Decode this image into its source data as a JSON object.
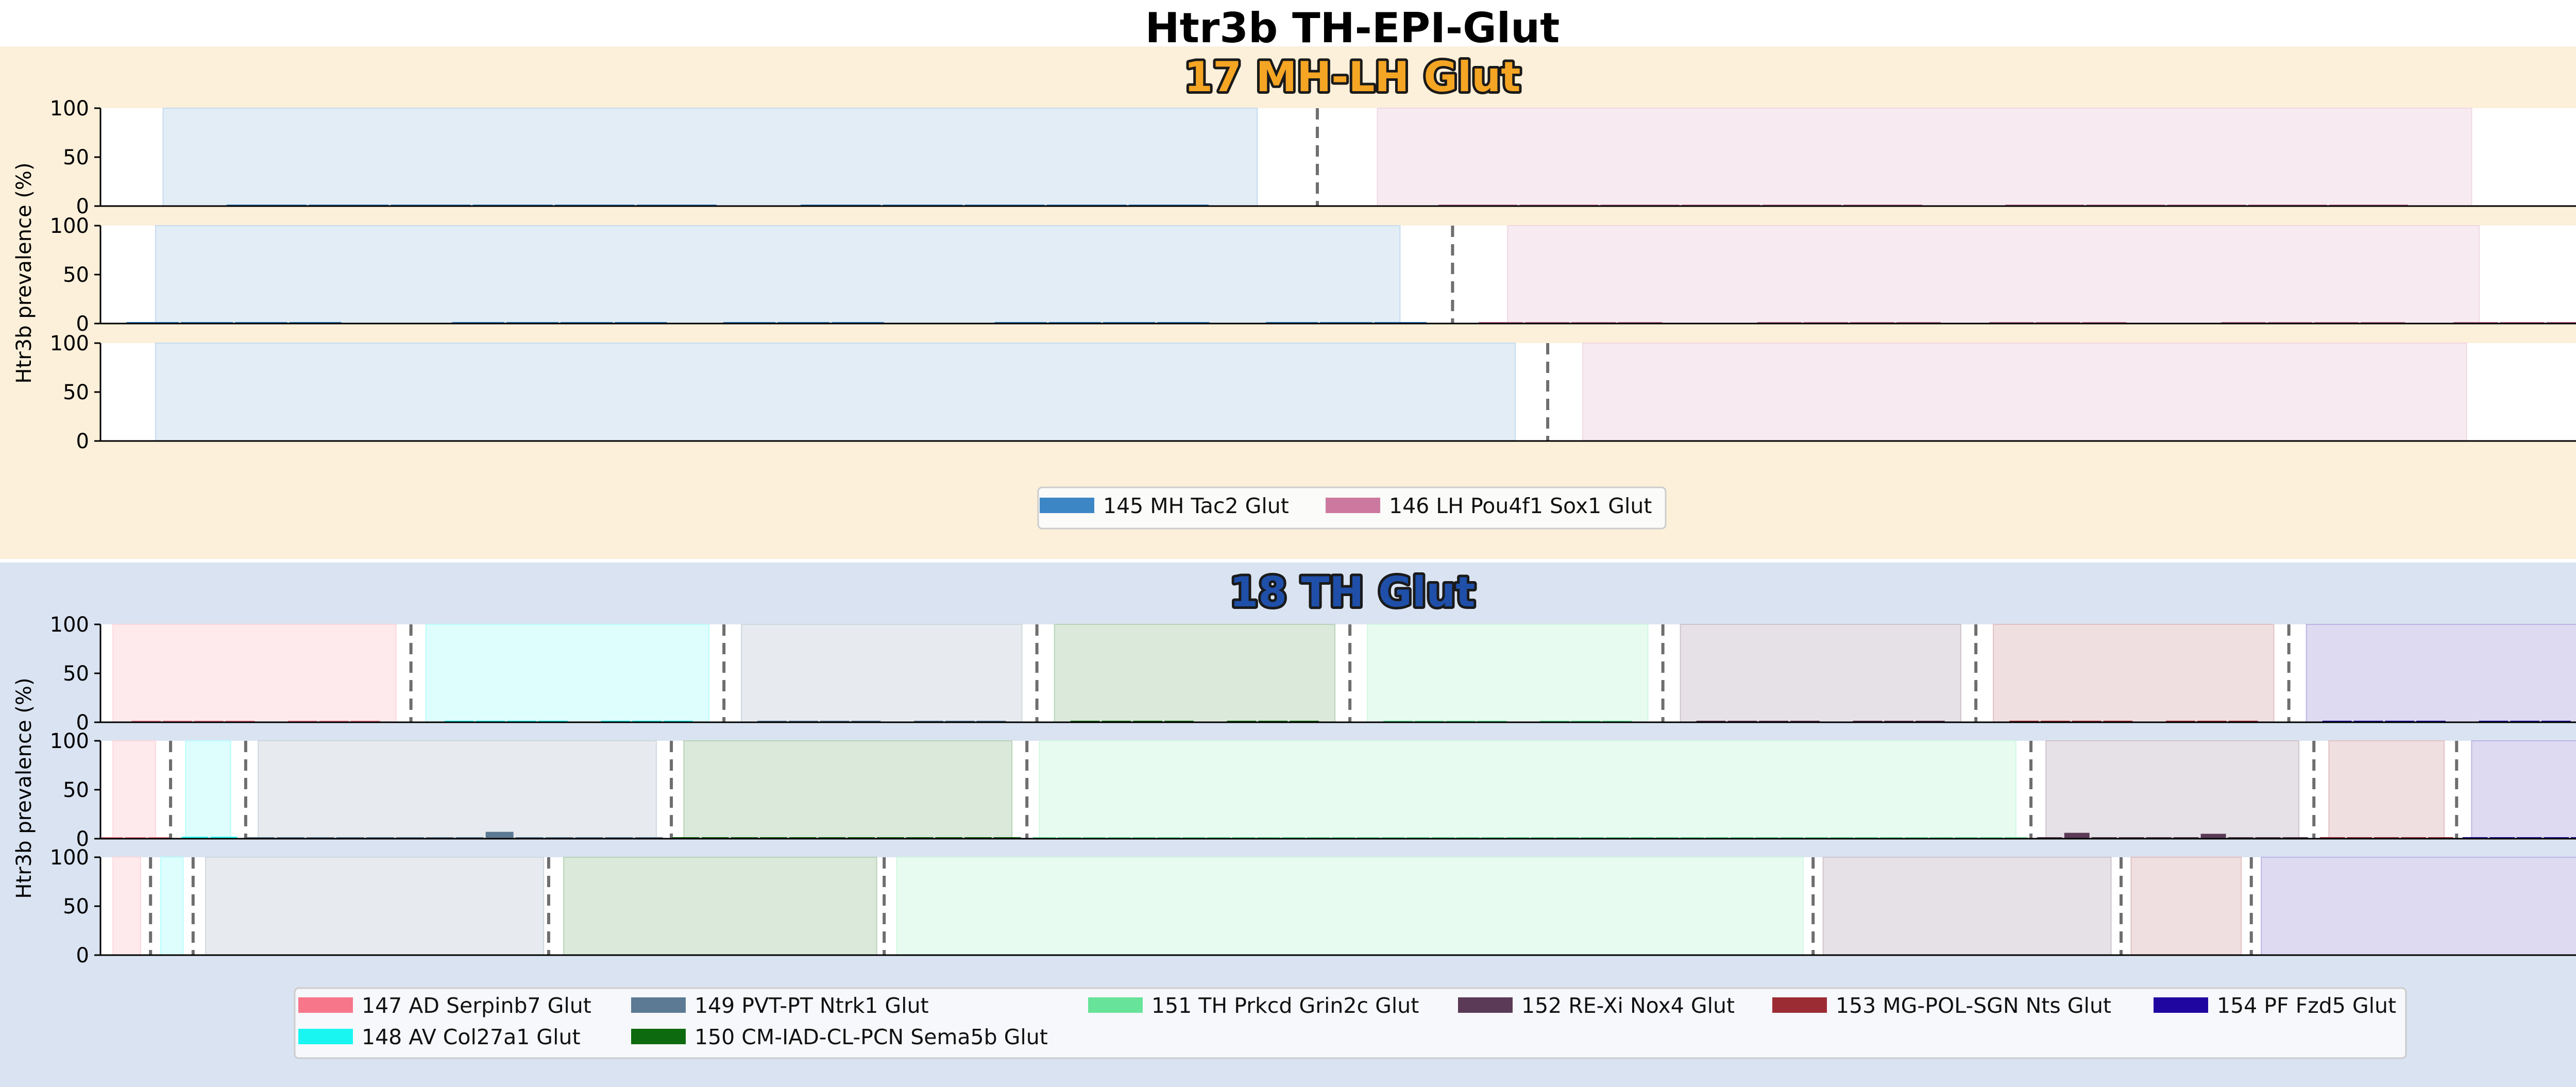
{
  "figure": {
    "title": "Htr3b TH-EPI-Glut",
    "ylabel": "Htr3b prevalence (%)",
    "yticks": [
      "0",
      "50",
      "100"
    ]
  },
  "colors": {
    "group_17_bg": "#fcf0da",
    "group_18_bg": "#dae3f1",
    "title_17_fill": "#f5a524",
    "title_18_fill": "#1f4fa8",
    "title_stroke": "#1a1a1a"
  },
  "chart_data": [
    {
      "type": "bar",
      "group_title": "17 MH-LH Glut",
      "ylim": [
        0,
        100
      ],
      "legend": [
        {
          "name": "145 MH Tac2 Glut",
          "color": "#3d86c6"
        },
        {
          "name": "146 LH Pou4f1 Sox1 Glut",
          "color": "#cc79a0"
        }
      ],
      "rows": [
        {
          "segments": [
            {
              "cluster": 0,
              "n": 12,
              "start": 0.025,
              "end": 0.462,
              "mark_start": 0.05,
              "mark_end": 0.443,
              "mark": 0.8,
              "gaps": [
                6
              ]
            },
            {
              "cluster": 1,
              "n": 12,
              "start": 0.51,
              "end": 0.947,
              "mark_start": 0.534,
              "mark_end": 0.922,
              "mark": 0.5,
              "gaps": [
                6
              ]
            }
          ],
          "dividers": [
            0.486
          ]
        },
        {
          "segments": [
            {
              "cluster": 0,
              "n": 24,
              "start": 0.022,
              "end": 0.519,
              "mark_start": 0.01,
              "mark_end": 0.53,
              "mark": 0.8,
              "gaps": [
                4,
                5,
                10,
                14,
                15,
                20
              ]
            },
            {
              "cluster": 1,
              "n": 24,
              "start": 0.562,
              "end": 0.95,
              "mark_start": 0.55,
              "mark_end": 0.995,
              "mark": 0.4,
              "gaps": [
                4,
                5,
                10,
                14,
                15,
                20
              ]
            }
          ],
          "dividers": [
            0.54
          ]
        },
        {
          "segments": [
            {
              "cluster": 0,
              "n": 0,
              "start": 0.022,
              "end": 0.565,
              "mark": 0
            },
            {
              "cluster": 1,
              "n": 0,
              "start": 0.592,
              "end": 0.945,
              "mark": 0
            }
          ],
          "dividers": [
            0.578
          ]
        }
      ]
    },
    {
      "type": "bar",
      "group_title": "18 TH Glut",
      "ylim": [
        0,
        100
      ],
      "legend": [
        {
          "name": "147 AD Serpinb7 Glut",
          "color": "#f7768a"
        },
        {
          "name": "148 AV Col27a1 Glut",
          "color": "#19f6f2"
        },
        {
          "name": "149 PVT-PT Ntrk1 Glut",
          "color": "#5c7a94"
        },
        {
          "name": "150 CM-IAD-CL-PCN Sema5b Glut",
          "color": "#0e6a0e"
        },
        {
          "name": "151 TH Prkcd Grin2c Glut",
          "color": "#67e39a"
        },
        {
          "name": "152 RE-Xi Nox4 Glut",
          "color": "#5a3a56"
        },
        {
          "name": "153 MG-POL-SGN Nts Glut",
          "color": "#9b2c34"
        },
        {
          "name": "154 PF Fzd5 Glut",
          "color": "#2006a0"
        }
      ],
      "rows": [
        {
          "segments": [
            {
              "cluster": 0,
              "n": 8,
              "start": 0.005,
              "end": 0.118,
              "mark_start": 0.012,
              "mark_end": 0.112,
              "mark": 0.8,
              "gaps": [
                4
              ]
            },
            {
              "cluster": 1,
              "n": 8,
              "start": 0.13,
              "end": 0.243,
              "mark_start": 0.137,
              "mark_end": 0.237,
              "mark": 0.5,
              "gaps": [
                4
              ]
            },
            {
              "cluster": 2,
              "n": 8,
              "start": 0.256,
              "end": 0.368,
              "mark_start": 0.262,
              "mark_end": 0.362,
              "mark": 0.6,
              "gaps": [
                4
              ]
            },
            {
              "cluster": 3,
              "n": 8,
              "start": 0.381,
              "end": 0.493,
              "mark_start": 0.387,
              "mark_end": 0.487,
              "mark": 1.0,
              "gaps": [
                4
              ]
            },
            {
              "cluster": 4,
              "n": 8,
              "start": 0.506,
              "end": 0.618,
              "mark_start": 0.512,
              "mark_end": 0.612,
              "mark": 0.5,
              "gaps": [
                4
              ]
            },
            {
              "cluster": 5,
              "n": 8,
              "start": 0.631,
              "end": 0.743,
              "mark_start": 0.637,
              "mark_end": 0.737,
              "mark": 1.2,
              "gaps": [
                4
              ]
            },
            {
              "cluster": 6,
              "n": 8,
              "start": 0.756,
              "end": 0.868,
              "mark_start": 0.762,
              "mark_end": 0.862,
              "mark": 1.0,
              "gaps": [
                4
              ]
            },
            {
              "cluster": 7,
              "n": 8,
              "start": 0.881,
              "end": 0.993,
              "mark_start": 0.887,
              "mark_end": 0.987,
              "mark": 1.0,
              "gaps": [
                4
              ]
            }
          ],
          "dividers": [
            0.124,
            0.249,
            0.374,
            0.499,
            0.624,
            0.749,
            0.874
          ]
        },
        {
          "segments": [
            {
              "cluster": 0,
              "n": 3,
              "start": 0.005,
              "end": 0.022,
              "mark_start": 0.0,
              "mark_end": 0.028,
              "mark": 1.5
            },
            {
              "cluster": 1,
              "n": 2,
              "start": 0.034,
              "end": 0.052,
              "mark_start": 0.032,
              "mark_end": 0.055,
              "mark": 2.0
            },
            {
              "cluster": 2,
              "n": 14,
              "start": 0.063,
              "end": 0.222,
              "mark_start": 0.058,
              "mark_end": 0.225,
              "mark": 1.0,
              "highlights": [
                {
                  "i": 8,
                  "v": 7
                }
              ]
            },
            {
              "cluster": 3,
              "n": 12,
              "start": 0.233,
              "end": 0.364,
              "mark_start": 0.228,
              "mark_end": 0.368,
              "mark": 1.5
            },
            {
              "cluster": 4,
              "n": 40,
              "start": 0.375,
              "end": 0.765,
              "mark_start": 0.372,
              "mark_end": 0.77,
              "mark": 0.8
            },
            {
              "cluster": 5,
              "n": 10,
              "start": 0.777,
              "end": 0.878,
              "mark_start": 0.773,
              "mark_end": 0.882,
              "mark": 1.0,
              "highlights": [
                {
                  "i": 1,
                  "v": 6
                },
                {
                  "i": 6,
                  "v": 5
                }
              ]
            },
            {
              "cluster": 6,
              "n": 5,
              "start": 0.89,
              "end": 0.936,
              "mark_start": 0.886,
              "mark_end": 0.94,
              "mark": 1.5
            },
            {
              "cluster": 7,
              "n": 5,
              "start": 0.947,
              "end": 0.993,
              "mark_start": 0.943,
              "mark_end": 0.997,
              "mark": 1.5
            }
          ],
          "dividers": [
            0.028,
            0.058,
            0.228,
            0.37,
            0.771,
            0.884,
            0.941
          ]
        },
        {
          "segments": [
            {
              "cluster": 0,
              "n": 0,
              "start": 0.005,
              "end": 0.016,
              "mark": 0
            },
            {
              "cluster": 1,
              "n": 0,
              "start": 0.024,
              "end": 0.033,
              "mark": 0
            },
            {
              "cluster": 2,
              "n": 0,
              "start": 0.042,
              "end": 0.177,
              "mark": 0
            },
            {
              "cluster": 3,
              "n": 0,
              "start": 0.185,
              "end": 0.31,
              "mark": 0
            },
            {
              "cluster": 4,
              "n": 0,
              "start": 0.318,
              "end": 0.68,
              "mark": 0
            },
            {
              "cluster": 5,
              "n": 0,
              "start": 0.688,
              "end": 0.803,
              "mark": 0
            },
            {
              "cluster": 6,
              "n": 0,
              "start": 0.811,
              "end": 0.855,
              "mark": 0
            },
            {
              "cluster": 7,
              "n": 0,
              "start": 0.863,
              "end": 0.995,
              "mark": 0
            }
          ],
          "dividers": [
            0.02,
            0.037,
            0.179,
            0.313,
            0.684,
            0.807,
            0.859
          ]
        }
      ]
    }
  ]
}
